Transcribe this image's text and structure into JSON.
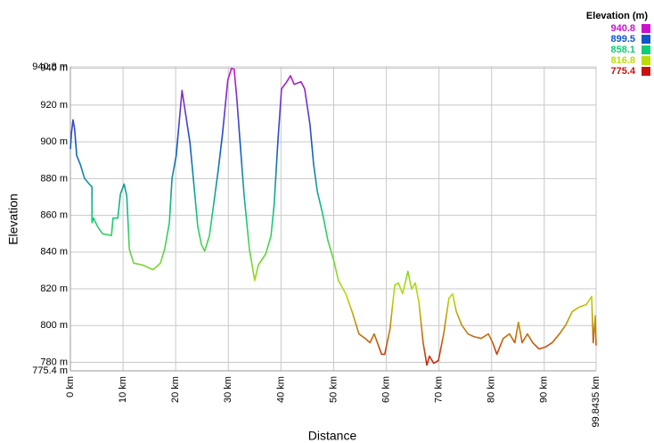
{
  "chart_data": {
    "type": "line",
    "x_label": "Distance",
    "y_label": "Elevation",
    "xlim": [
      0,
      99.8435
    ],
    "ylim": [
      775.4,
      940.8
    ],
    "xticks": [
      {
        "value": 0,
        "label": "0 km"
      },
      {
        "value": 10,
        "label": "10 km"
      },
      {
        "value": 20,
        "label": "20 km"
      },
      {
        "value": 30,
        "label": "30 km"
      },
      {
        "value": 40,
        "label": "40 km"
      },
      {
        "value": 50,
        "label": "50 km"
      },
      {
        "value": 60,
        "label": "60 km"
      },
      {
        "value": 70,
        "label": "70 km"
      },
      {
        "value": 80,
        "label": "80 km"
      },
      {
        "value": 90,
        "label": "90 km"
      },
      {
        "value": 99.8435,
        "label": "99.8435 km"
      }
    ],
    "yticks": [
      {
        "value": 775.4,
        "label": "775.4 m"
      },
      {
        "value": 780,
        "label": "780 m"
      },
      {
        "value": 800,
        "label": "800 m"
      },
      {
        "value": 820,
        "label": "820 m"
      },
      {
        "value": 840,
        "label": "840 m"
      },
      {
        "value": 860,
        "label": "860 m"
      },
      {
        "value": 880,
        "label": "880 m"
      },
      {
        "value": 900,
        "label": "900 m"
      },
      {
        "value": 920,
        "label": "920 m"
      },
      {
        "value": 940,
        "label": "940 m"
      },
      {
        "value": 940.8,
        "label": "940.8 m"
      }
    ],
    "grid": true,
    "color_scale": {
      "title": "Elevation (m)",
      "stops": [
        {
          "value": 940.8,
          "color": "#cc11cc"
        },
        {
          "value": 899.5,
          "color": "#1155cc"
        },
        {
          "value": 858.1,
          "color": "#11cc77"
        },
        {
          "value": 816.8,
          "color": "#bbdd00"
        },
        {
          "value": 775.4,
          "color": "#cc1111"
        }
      ]
    },
    "x": [
      0,
      0.2,
      0.5,
      0.8,
      1.2,
      1.9,
      2.7,
      3.6,
      4.1,
      4.1,
      4.4,
      5.2,
      6.1,
      7.8,
      8.1,
      9.0,
      9.5,
      10.2,
      10.7,
      11.2,
      12.0,
      13.7,
      15.7,
      17.1,
      17.9,
      18.8,
      19.3,
      20.1,
      21.2,
      21.8,
      22.7,
      23.5,
      24.2,
      24.9,
      25.5,
      26.4,
      27.2,
      28.1,
      28.9,
      29.9,
      30.6,
      31.1,
      31.6,
      32.3,
      33.0,
      34.0,
      35.0,
      35.7,
      37.1,
      38.1,
      38.7,
      39.4,
      40.1,
      41.1,
      41.8,
      42.5,
      43.8,
      44.5,
      45.5,
      46.2,
      46.9,
      47.9,
      48.9,
      49.9,
      50.9,
      52.3,
      53.5,
      54.8,
      56.0,
      56.9,
      57.7,
      59.1,
      59.7,
      60.7,
      61.6,
      62.3,
      63.1,
      64.1,
      64.8,
      65.5,
      66.2,
      67.0,
      67.7,
      68.2,
      69.0,
      69.9,
      70.9,
      71.9,
      72.6,
      73.3,
      74.3,
      75.5,
      76.6,
      78.0,
      79.4,
      80.2,
      81.0,
      82.2,
      83.4,
      84.4,
      85.1,
      85.8,
      86.8,
      87.8,
      89.0,
      90.2,
      91.5,
      92.9,
      94.1,
      95.3,
      96.6,
      98.0,
      99.0,
      99.3,
      99.7,
      99.84
    ],
    "values": [
      896,
      904.6,
      912,
      907,
      892.5,
      887.6,
      880,
      877,
      875.5,
      856,
      858.5,
      853.7,
      850,
      849,
      858.5,
      858.5,
      871.6,
      877,
      870.7,
      841.6,
      834,
      833,
      830.4,
      834,
      841.6,
      856,
      880,
      892.5,
      928,
      916.7,
      899.8,
      875.5,
      853.7,
      844,
      840.6,
      848.8,
      865.8,
      885,
      904.6,
      933.7,
      940,
      939.5,
      924,
      897,
      870.7,
      841.6,
      824.6,
      833,
      839,
      848.8,
      865.8,
      899.8,
      928.8,
      932.7,
      936,
      931.3,
      932.7,
      928.8,
      909.5,
      887.6,
      873,
      861,
      846.4,
      836.7,
      824.6,
      817.3,
      807.6,
      795.5,
      793,
      790.7,
      795.5,
      784.4,
      784.4,
      798,
      822,
      823.2,
      817.3,
      829.5,
      819.8,
      823.2,
      812.5,
      790.7,
      778.5,
      783.4,
      779.5,
      781,
      795.5,
      815,
      817.3,
      807.6,
      800.4,
      795.5,
      794,
      793,
      795.5,
      790.7,
      784.4,
      793,
      795.5,
      790.7,
      801.8,
      790.7,
      795.5,
      790.7,
      787.3,
      788.3,
      790.7,
      795.5,
      800.4,
      807.6,
      810,
      811.5,
      815.9,
      790.7,
      805.3,
      789.2
    ]
  }
}
